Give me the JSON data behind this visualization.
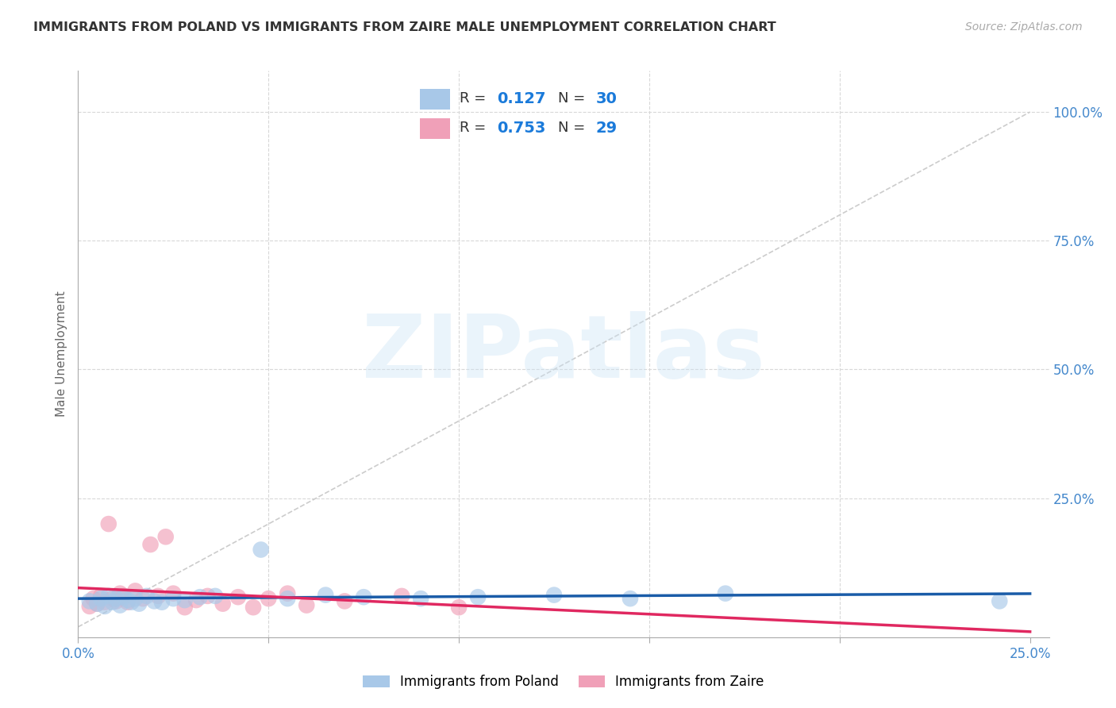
{
  "title": "IMMIGRANTS FROM POLAND VS IMMIGRANTS FROM ZAIRE MALE UNEMPLOYMENT CORRELATION CHART",
  "source": "Source: ZipAtlas.com",
  "ylabel": "Male Unemployment",
  "xlim": [
    0.0,
    0.255
  ],
  "ylim": [
    -0.02,
    1.08
  ],
  "xticks": [
    0.0,
    0.05,
    0.1,
    0.15,
    0.2,
    0.25
  ],
  "xticklabels": [
    "0.0%",
    "",
    "",
    "",
    "",
    "25.0%"
  ],
  "ytick_vals": [
    0.0,
    0.25,
    0.5,
    0.75,
    1.0
  ],
  "yticklabels": [
    "",
    "25.0%",
    "50.0%",
    "75.0%",
    "100.0%"
  ],
  "poland_color": "#a8c8e8",
  "zaire_color": "#f0a0b8",
  "poland_line_color": "#1a5ca8",
  "zaire_line_color": "#e02860",
  "diagonal_color": "#cccccc",
  "watermark": "ZIPatlas",
  "R_poland": 0.127,
  "N_poland": 30,
  "R_zaire": 0.753,
  "N_zaire": 29,
  "poland_scatter_x": [
    0.003,
    0.005,
    0.006,
    0.007,
    0.008,
    0.009,
    0.01,
    0.011,
    0.012,
    0.013,
    0.014,
    0.015,
    0.016,
    0.018,
    0.02,
    0.022,
    0.025,
    0.028,
    0.032,
    0.036,
    0.048,
    0.055,
    0.065,
    0.075,
    0.09,
    0.105,
    0.125,
    0.145,
    0.17,
    0.242
  ],
  "poland_scatter_y": [
    0.05,
    0.045,
    0.055,
    0.04,
    0.06,
    0.048,
    0.055,
    0.042,
    0.058,
    0.052,
    0.048,
    0.055,
    0.045,
    0.06,
    0.05,
    0.048,
    0.055,
    0.052,
    0.058,
    0.06,
    0.15,
    0.055,
    0.062,
    0.058,
    0.055,
    0.058,
    0.062,
    0.055,
    0.065,
    0.05
  ],
  "zaire_scatter_x": [
    0.003,
    0.004,
    0.005,
    0.006,
    0.007,
    0.008,
    0.009,
    0.01,
    0.011,
    0.012,
    0.013,
    0.015,
    0.017,
    0.019,
    0.021,
    0.023,
    0.025,
    0.028,
    0.031,
    0.034,
    0.038,
    0.042,
    0.046,
    0.05,
    0.055,
    0.06,
    0.07,
    0.085,
    0.1
  ],
  "zaire_scatter_y": [
    0.04,
    0.055,
    0.045,
    0.06,
    0.048,
    0.2,
    0.055,
    0.05,
    0.065,
    0.06,
    0.048,
    0.07,
    0.055,
    0.16,
    0.06,
    0.175,
    0.065,
    0.038,
    0.052,
    0.06,
    0.045,
    0.058,
    0.038,
    0.055,
    0.065,
    0.042,
    0.05,
    0.06,
    0.038
  ],
  "background_color": "#ffffff",
  "grid_color": "#d8d8d8",
  "title_color": "#333333",
  "axis_label_color": "#666666",
  "tick_label_color": "#4488cc",
  "legend_labels": [
    "Immigrants from Poland",
    "Immigrants from Zaire"
  ],
  "legend_text_color": "#333333",
  "legend_num_color": "#1a7ada"
}
